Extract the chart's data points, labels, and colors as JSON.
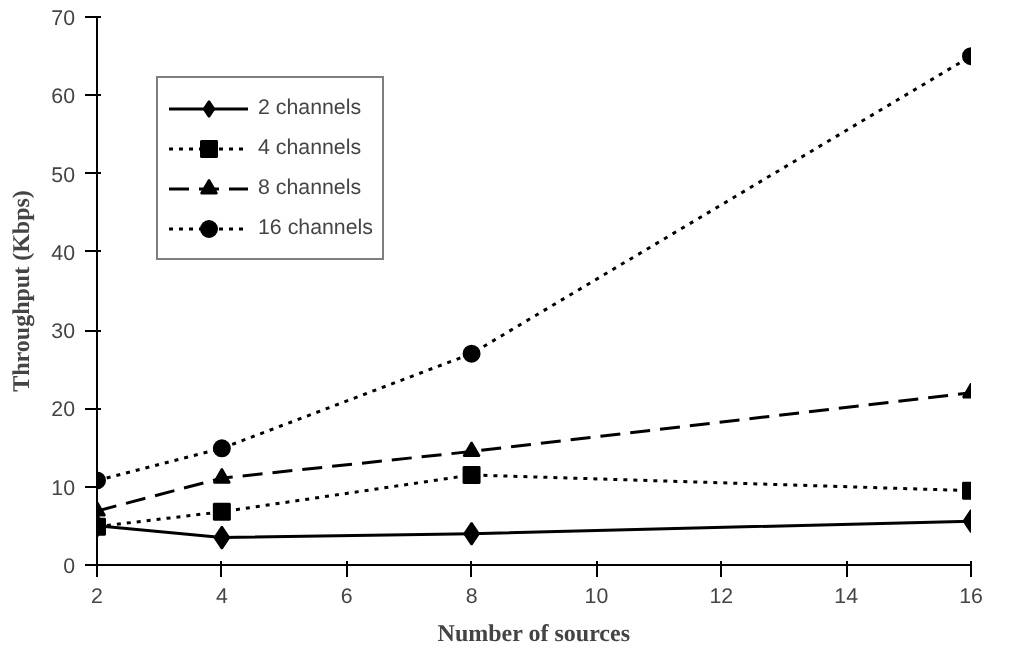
{
  "chart_data": {
    "type": "line",
    "xlabel": "Number of sources",
    "ylabel": "Throughput (Kbps)",
    "x": [
      2,
      4,
      8,
      16
    ],
    "series": [
      {
        "name": "2 channels",
        "color": "#000000",
        "values": [
          5,
          3.5,
          4,
          5.6
        ],
        "marker": "diamond",
        "line_style": "solid"
      },
      {
        "name": "4 channels",
        "color": "#000000",
        "values": [
          4.9,
          6.8,
          11.5,
          9.5
        ],
        "marker": "square",
        "line_style": "dotted"
      },
      {
        "name": "8 channels",
        "color": "#000000",
        "values": [
          6.9,
          11.1,
          14.5,
          22
        ],
        "marker": "triangle",
        "line_style": "dashed"
      },
      {
        "name": "16 channels",
        "color": "#000000",
        "values": [
          10.8,
          14.9,
          27,
          65
        ],
        "marker": "circle",
        "line_style": "dotted"
      }
    ],
    "xlim": [
      2,
      16
    ],
    "xticks": [
      2,
      4,
      6,
      8,
      10,
      12,
      14,
      16
    ],
    "ylim": [
      0,
      70
    ],
    "yticks": [
      0,
      10,
      20,
      30,
      40,
      50,
      60,
      70
    ],
    "grid": false,
    "legend": "top left"
  }
}
